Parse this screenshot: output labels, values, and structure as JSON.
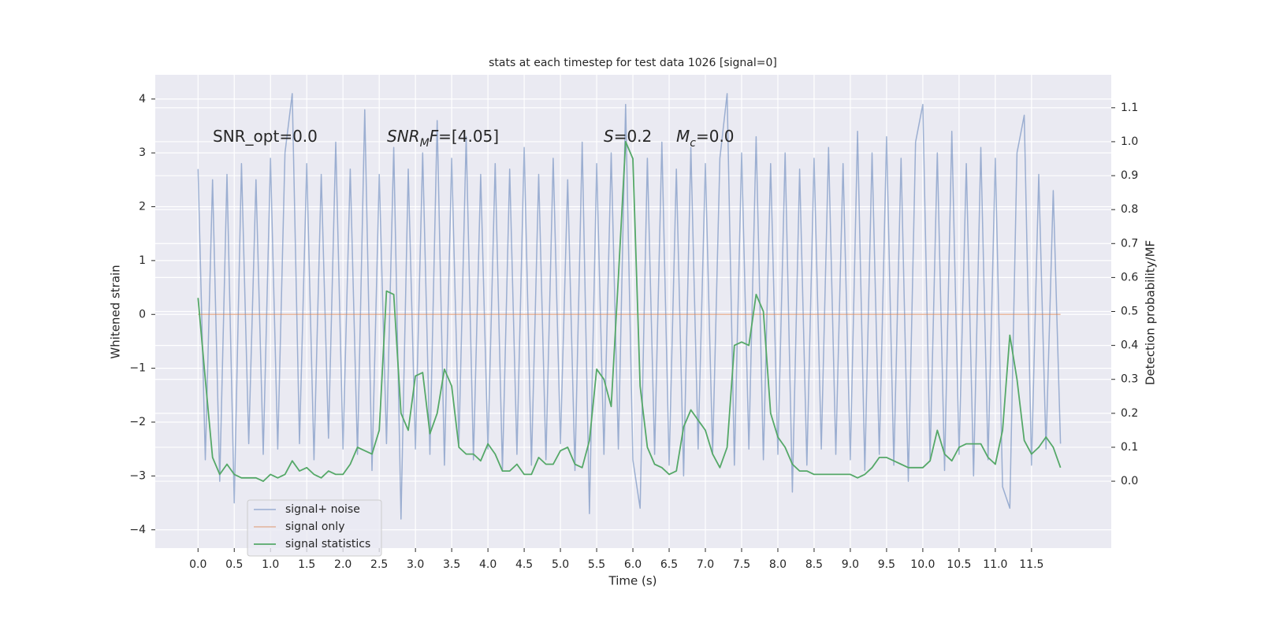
{
  "chart_data": {
    "type": "line",
    "title": "stats at each timestep for test data 1026 [signal=0]",
    "xlabel": "Time (s)",
    "ylabel": "Whitened strain",
    "y2label": "Detection probability/MF",
    "annotations": [
      [
        {
          "t": "SNR_opt=0.0"
        }
      ],
      [
        {
          "t": "SNR",
          "italic": true
        },
        {
          "t": "M",
          "italic": true,
          "sub": true
        },
        {
          "t": "F",
          "italic": true
        },
        {
          "t": "=[4.05]"
        }
      ],
      [
        {
          "t": "S",
          "italic": true
        },
        {
          "t": "=0.2"
        }
      ],
      [
        {
          "t": "M",
          "italic": true
        },
        {
          "t": "c",
          "italic": true,
          "sub": true
        },
        {
          "t": "=0.0"
        }
      ]
    ],
    "xlim": [
      -0.59,
      12.6
    ],
    "ylim": [
      -4.34,
      4.45
    ],
    "y2lim": [
      -0.197,
      1.197
    ],
    "xticks": [
      {
        "value": 0,
        "label": "0.0"
      },
      0.5,
      {
        "value": 1,
        "label": "1.0"
      },
      1.5,
      {
        "value": 2,
        "label": "2.0"
      },
      2.5,
      {
        "value": 3,
        "label": "3.0"
      },
      3.5,
      {
        "value": 4,
        "label": "4.0"
      },
      4.5,
      {
        "value": 5,
        "label": "5.0"
      },
      5.5,
      {
        "value": 6,
        "label": "6.0"
      },
      6.5,
      {
        "value": 7,
        "label": "7.0"
      },
      7.5,
      {
        "value": 8,
        "label": "8.0"
      },
      8.5,
      {
        "value": 9,
        "label": "9.0"
      },
      9.5,
      {
        "value": 10,
        "label": "10.0"
      },
      10.5,
      {
        "value": 11,
        "label": "11.0"
      },
      11.5
    ],
    "yticks": [
      {
        "value": -4,
        "label": "−4"
      },
      {
        "value": -3,
        "label": "−3"
      },
      {
        "value": -2,
        "label": "−2"
      },
      {
        "value": -1,
        "label": "−1"
      },
      0,
      1,
      2,
      3,
      4
    ],
    "y2ticks": [
      {
        "value": 0,
        "label": "0.0"
      },
      0.1,
      0.2,
      0.3,
      0.4,
      0.5,
      0.6,
      0.7,
      0.8,
      0.9,
      {
        "value": 1,
        "label": "1.0"
      },
      1.1
    ],
    "grid": true,
    "legend": "lower left",
    "series": [
      {
        "name": "signal+ noise",
        "color": "#4c72b0",
        "x": [
          0,
          0.1,
          0.2,
          0.3,
          0.4,
          0.5,
          0.6,
          0.7,
          0.8,
          0.9,
          1,
          1.1,
          1.2,
          1.3,
          1.4,
          1.5,
          1.6,
          1.7,
          1.8,
          1.9,
          2,
          2.1,
          2.2,
          2.3,
          2.4,
          2.5,
          2.6,
          2.7,
          2.8,
          2.9,
          3,
          3.1,
          3.2,
          3.3,
          3.4,
          3.5,
          3.6,
          3.7,
          3.8,
          3.9,
          4,
          4.1,
          4.2,
          4.3,
          4.4,
          4.5,
          4.6,
          4.7,
          4.8,
          4.9,
          5,
          5.1,
          5.2,
          5.3,
          5.4,
          5.5,
          5.6,
          5.7,
          5.8,
          5.9,
          6,
          6.1,
          6.2,
          6.3,
          6.4,
          6.5,
          6.6,
          6.7,
          6.8,
          6.9,
          7,
          7.1,
          7.2,
          7.3,
          7.4,
          7.5,
          7.6,
          7.7,
          7.8,
          7.9,
          8,
          8.1,
          8.2,
          8.3,
          8.4,
          8.5,
          8.6,
          8.7,
          8.8,
          8.9,
          9,
          9.1,
          9.2,
          9.3,
          9.4,
          9.5,
          9.6,
          9.7,
          9.8,
          9.9,
          10,
          10.1,
          10.2,
          10.3,
          10.4,
          10.5,
          10.6,
          10.7,
          10.8,
          10.9,
          11,
          11.1,
          11.2,
          11.3,
          11.4,
          11.5,
          11.6,
          11.7,
          11.8,
          11.9
        ],
        "values": [
          2.7,
          -2.7,
          2.5,
          -3.1,
          2.6,
          -3.5,
          2.8,
          -2.4,
          2.5,
          -2.6,
          2.9,
          -2.5,
          3.0,
          4.1,
          -2.4,
          2.8,
          -2.7,
          2.6,
          -2.3,
          3.2,
          -2.5,
          2.7,
          -2.6,
          3.8,
          -2.9,
          2.6,
          -2.4,
          3.1,
          -3.8,
          2.7,
          -2.5,
          3.0,
          -2.6,
          3.6,
          -2.8,
          2.9,
          -2.4,
          3.3,
          -2.7,
          2.6,
          -2.5,
          2.8,
          -2.9,
          2.7,
          -2.6,
          3.1,
          -2.8,
          2.6,
          -2.7,
          2.9,
          -2.4,
          2.5,
          -2.9,
          3.2,
          -3.7,
          2.8,
          -2.6,
          3.0,
          -2.5,
          3.9,
          -2.7,
          -3.6,
          2.9,
          -2.6,
          3.2,
          -2.8,
          2.7,
          -3.0,
          3.1,
          -2.5,
          2.8,
          -2.6,
          2.9,
          4.1,
          -2.8,
          3.0,
          -2.5,
          3.3,
          -2.7,
          2.8,
          -2.6,
          3.0,
          -3.3,
          2.7,
          -2.8,
          2.9,
          -2.5,
          3.1,
          -2.6,
          2.8,
          -2.7,
          3.4,
          -2.9,
          3.0,
          -2.6,
          3.3,
          -2.8,
          2.9,
          -3.1,
          3.2,
          3.9,
          -2.7,
          3.0,
          -2.9,
          3.4,
          -2.6,
          2.8,
          -3.0,
          3.1,
          -2.7,
          2.9,
          -3.2,
          -3.6,
          3.0,
          3.7,
          -2.8,
          2.6,
          -2.5,
          2.3,
          -2.4
        ]
      },
      {
        "name": "signal only",
        "color": "#dd8452",
        "x": [
          0,
          11.9
        ],
        "values": [
          0,
          0
        ]
      },
      {
        "name": "signal statistics",
        "color": "#55a868",
        "axis": "y2",
        "x": [
          0,
          0.1,
          0.2,
          0.3,
          0.4,
          0.5,
          0.6,
          0.7,
          0.8,
          0.9,
          1,
          1.1,
          1.2,
          1.3,
          1.4,
          1.5,
          1.6,
          1.7,
          1.8,
          1.9,
          2,
          2.1,
          2.2,
          2.3,
          2.4,
          2.5,
          2.6,
          2.7,
          2.8,
          2.9,
          3,
          3.1,
          3.2,
          3.3,
          3.4,
          3.5,
          3.6,
          3.7,
          3.8,
          3.9,
          4,
          4.1,
          4.2,
          4.3,
          4.4,
          4.5,
          4.6,
          4.7,
          4.8,
          4.9,
          5,
          5.1,
          5.2,
          5.3,
          5.4,
          5.5,
          5.6,
          5.7,
          5.8,
          5.9,
          6,
          6.1,
          6.2,
          6.3,
          6.4,
          6.5,
          6.6,
          6.7,
          6.8,
          6.9,
          7,
          7.1,
          7.2,
          7.3,
          7.4,
          7.5,
          7.6,
          7.7,
          7.8,
          7.9,
          8,
          8.1,
          8.2,
          8.3,
          8.4,
          8.5,
          8.6,
          8.7,
          8.8,
          8.9,
          9,
          9.1,
          9.2,
          9.3,
          9.4,
          9.5,
          9.6,
          9.7,
          9.8,
          9.9,
          10,
          10.1,
          10.2,
          10.3,
          10.4,
          10.5,
          10.6,
          10.7,
          10.8,
          10.9,
          11,
          11.1,
          11.2,
          11.3,
          11.4,
          11.5,
          11.6,
          11.7,
          11.8,
          11.9
        ],
        "values": [
          0.54,
          0.3,
          0.07,
          0.02,
          0.05,
          0.02,
          0.01,
          0.01,
          0.01,
          0.0,
          0.02,
          0.01,
          0.02,
          0.06,
          0.03,
          0.04,
          0.02,
          0.01,
          0.03,
          0.02,
          0.02,
          0.05,
          0.1,
          0.09,
          0.08,
          0.15,
          0.56,
          0.55,
          0.2,
          0.15,
          0.31,
          0.32,
          0.14,
          0.2,
          0.33,
          0.28,
          0.1,
          0.08,
          0.08,
          0.06,
          0.11,
          0.08,
          0.03,
          0.03,
          0.05,
          0.02,
          0.02,
          0.07,
          0.05,
          0.05,
          0.09,
          0.1,
          0.05,
          0.04,
          0.12,
          0.33,
          0.3,
          0.22,
          0.6,
          1.0,
          0.95,
          0.28,
          0.1,
          0.05,
          0.04,
          0.02,
          0.03,
          0.16,
          0.21,
          0.18,
          0.15,
          0.08,
          0.04,
          0.1,
          0.4,
          0.41,
          0.4,
          0.55,
          0.5,
          0.2,
          0.13,
          0.1,
          0.05,
          0.03,
          0.03,
          0.02,
          0.02,
          0.02,
          0.02,
          0.02,
          0.02,
          0.01,
          0.02,
          0.04,
          0.07,
          0.07,
          0.06,
          0.05,
          0.04,
          0.04,
          0.04,
          0.06,
          0.15,
          0.08,
          0.06,
          0.1,
          0.11,
          0.11,
          0.11,
          0.07,
          0.05,
          0.15,
          0.43,
          0.3,
          0.12,
          0.08,
          0.1,
          0.13,
          0.1,
          0.04
        ]
      }
    ]
  }
}
